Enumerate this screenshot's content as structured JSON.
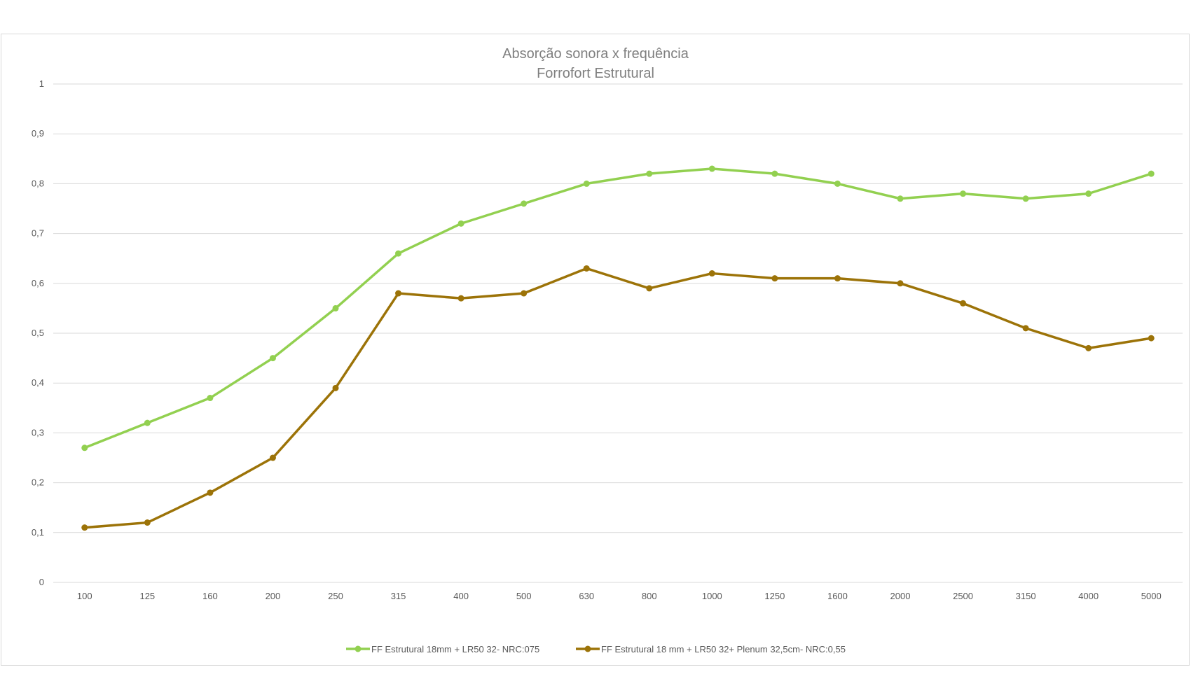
{
  "chart_data": {
    "type": "line",
    "title": "Absorção sonora x frequência",
    "subtitle": "Forrofort Estrutural",
    "xlabel": "",
    "ylabel": "",
    "categories": [
      "100",
      "125",
      "160",
      "200",
      "250",
      "315",
      "400",
      "500",
      "630",
      "800",
      "1000",
      "1250",
      "1600",
      "2000",
      "2500",
      "3150",
      "4000",
      "5000"
    ],
    "y_ticks": [
      "0",
      "0,1",
      "0,2",
      "0,3",
      "0,4",
      "0,5",
      "0,6",
      "0,7",
      "0,8",
      "0,9",
      "1"
    ],
    "ylim": [
      0,
      1
    ],
    "grid": true,
    "legend_position": "bottom",
    "series": [
      {
        "name": "FF Estrutural 18mm +  LR50 32- NRC:075",
        "color": "#92d050",
        "values": [
          0.27,
          0.32,
          0.37,
          0.45,
          0.55,
          0.66,
          0.72,
          0.76,
          0.8,
          0.82,
          0.83,
          0.82,
          0.8,
          0.77,
          0.78,
          0.77,
          0.78,
          0.82
        ]
      },
      {
        "name": "FF Estrutural 18 mm +  LR50 32+ Plenum 32,5cm- NRC:0,55",
        "color": "#9c7308",
        "values": [
          0.11,
          0.12,
          0.18,
          0.25,
          0.39,
          0.58,
          0.57,
          0.58,
          0.63,
          0.59,
          0.62,
          0.61,
          0.61,
          0.6,
          0.56,
          0.51,
          0.47,
          0.49
        ]
      }
    ]
  }
}
